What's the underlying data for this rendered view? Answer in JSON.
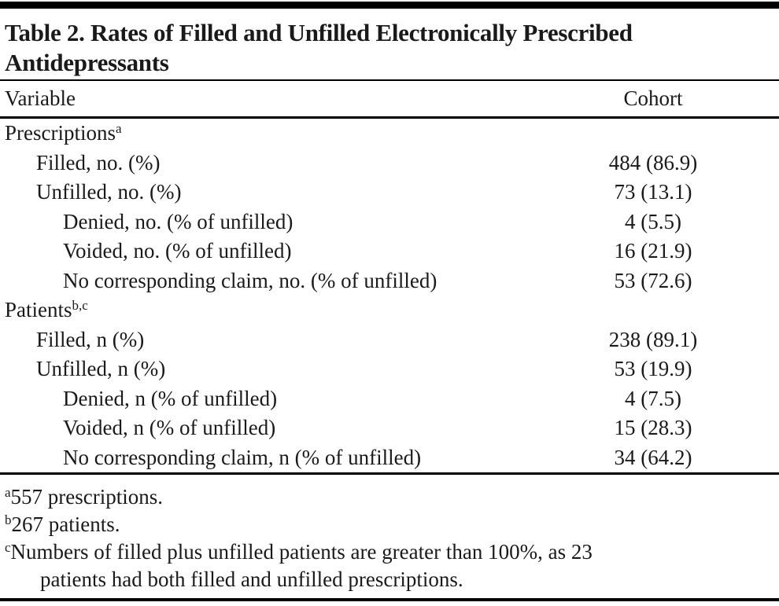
{
  "table": {
    "title_line1": "Table 2. Rates of Filled and Unfilled Electronically Prescribed",
    "title_line2": "Antidepressants",
    "columns": {
      "variable": "Variable",
      "cohort": "Cohort"
    },
    "rows": [
      {
        "label": "Prescriptions",
        "sup": "a",
        "value": "",
        "indent": 0
      },
      {
        "label": "Filled, no. (%)",
        "sup": "",
        "value": "484 (86.9)",
        "indent": 1
      },
      {
        "label": "Unfilled, no. (%)",
        "sup": "",
        "value": "73 (13.1)",
        "indent": 1
      },
      {
        "label": "Denied, no. (% of unfilled)",
        "sup": "",
        "value": "4 (5.5)",
        "indent": 2
      },
      {
        "label": "Voided, no. (% of unfilled)",
        "sup": "",
        "value": "16 (21.9)",
        "indent": 2
      },
      {
        "label": "No corresponding claim, no. (% of unfilled)",
        "sup": "",
        "value": "53 (72.6)",
        "indent": 2
      },
      {
        "label": "Patients",
        "sup": "b,c",
        "value": "",
        "indent": 0
      },
      {
        "label": "Filled, n (%)",
        "sup": "",
        "value": "238 (89.1)",
        "indent": 1
      },
      {
        "label": "Unfilled, n (%)",
        "sup": "",
        "value": "53 (19.9)",
        "indent": 1
      },
      {
        "label": "Denied, n (% of unfilled)",
        "sup": "",
        "value": "4 (7.5)",
        "indent": 2
      },
      {
        "label": "Voided, n (% of unfilled)",
        "sup": "",
        "value": "15 (28.3)",
        "indent": 2
      },
      {
        "label": "No corresponding claim, n (% of unfilled)",
        "sup": "",
        "value": "34 (64.2)",
        "indent": 2
      }
    ],
    "footnotes": [
      {
        "marker": "a",
        "lines": [
          "557 prescriptions."
        ]
      },
      {
        "marker": "b",
        "lines": [
          "267 patients."
        ]
      },
      {
        "marker": "c",
        "lines": [
          "Numbers of filled plus unfilled patients are greater than 100%, as 23",
          "patients had both filled and unfilled prescriptions."
        ]
      }
    ],
    "colors": {
      "text": "#1a1a1a",
      "rule": "#000000",
      "background": "#ffffff"
    }
  }
}
